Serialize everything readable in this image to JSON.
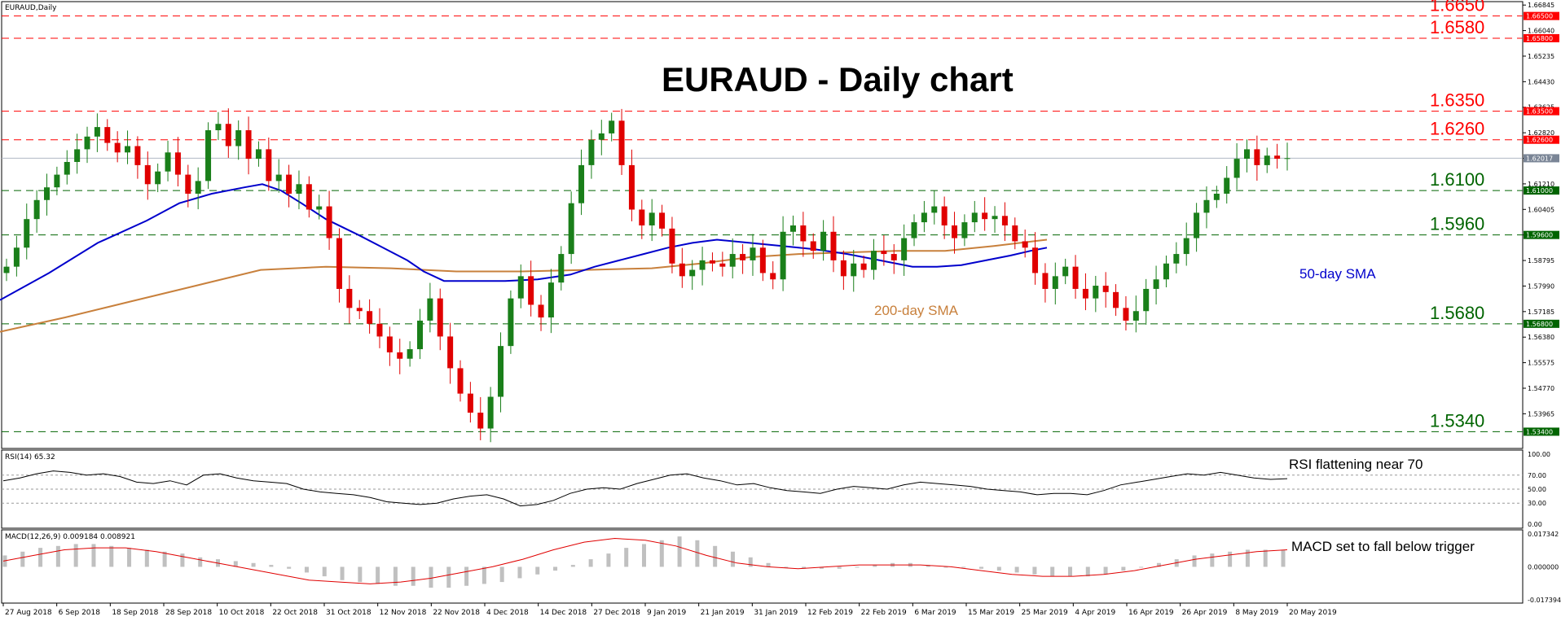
{
  "chart_data": {
    "type": "candlestick",
    "symbol_label": "EURAUD,Daily",
    "title": "EURAUD - Daily chart",
    "price_axis": {
      "range": [
        1.53,
        1.6685
      ],
      "ticks": [
        "1.66845",
        "1.66040",
        "1.65235",
        "1.64430",
        "1.63625",
        "1.62820",
        "1.62015",
        "1.61210",
        "1.60405",
        "1.59600",
        "1.58795",
        "1.57990",
        "1.57185",
        "1.56380",
        "1.55575",
        "1.54770",
        "1.53965"
      ]
    },
    "date_axis": [
      "27 Aug 2018",
      "6 Sep 2018",
      "18 Sep 2018",
      "28 Sep 2018",
      "10 Oct 2018",
      "22 Oct 2018",
      "31 Oct 2018",
      "12 Nov 2018",
      "22 Nov 2018",
      "4 Dec 2018",
      "14 Dec 2018",
      "27 Dec 2018",
      "9 Jan 2019",
      "21 Jan 2019",
      "31 Jan 2019",
      "12 Feb 2019",
      "22 Feb 2019",
      "6 Mar 2019",
      "15 Mar 2019",
      "25 Mar 2019",
      "4 Apr 2019",
      "16 Apr 2019",
      "26 Apr 2019",
      "8 May 2019",
      "20 May 2019"
    ],
    "levels": [
      {
        "value": 1.665,
        "label": "1.6650",
        "badge": "1.66500",
        "color": "#ff0000"
      },
      {
        "value": 1.658,
        "label": "1.6580",
        "badge": "1.65800",
        "color": "#ff0000"
      },
      {
        "value": 1.635,
        "label": "1.6350",
        "badge": "1.63500",
        "color": "#ff0000"
      },
      {
        "value": 1.626,
        "label": "1.6260",
        "badge": "1.62600",
        "color": "#ff0000"
      },
      {
        "value": 1.61,
        "label": "1.6100",
        "badge": "1.61000",
        "color": "#006400"
      },
      {
        "value": 1.596,
        "label": "1.5960",
        "badge": "1.59600",
        "color": "#006400"
      },
      {
        "value": 1.568,
        "label": "1.5680",
        "badge": "1.56800",
        "color": "#006400"
      },
      {
        "value": 1.534,
        "label": "1.5340",
        "badge": "1.53400",
        "color": "#006400"
      }
    ],
    "current_price": {
      "value": 1.62017,
      "badge": "1.62017"
    },
    "sma50_label": "50-day SMA",
    "sma200_label": "200-day SMA",
    "closes": [
      1.586,
      1.592,
      1.601,
      1.607,
      1.611,
      1.615,
      1.619,
      1.623,
      1.627,
      1.63,
      1.625,
      1.622,
      1.624,
      1.618,
      1.612,
      1.616,
      1.622,
      1.615,
      1.609,
      1.613,
      1.629,
      1.631,
      1.624,
      1.629,
      1.62,
      1.623,
      1.613,
      1.615,
      1.609,
      1.612,
      1.604,
      1.605,
      1.595,
      1.579,
      1.573,
      1.572,
      1.568,
      1.564,
      1.559,
      1.557,
      1.56,
      1.569,
      1.576,
      1.564,
      1.554,
      1.546,
      1.54,
      1.535,
      1.545,
      1.561,
      1.576,
      1.583,
      1.574,
      1.57,
      1.581,
      1.59,
      1.606,
      1.618,
      1.626,
      1.628,
      1.632,
      1.618,
      1.604,
      1.599,
      1.603,
      1.598,
      1.587,
      1.583,
      1.585,
      1.588,
      1.587,
      1.586,
      1.59,
      1.588,
      1.592,
      1.584,
      1.582,
      1.597,
      1.599,
      1.594,
      1.591,
      1.597,
      1.588,
      1.583,
      1.587,
      1.585,
      1.591,
      1.59,
      1.588,
      1.595,
      1.6,
      1.603,
      1.605,
      1.599,
      1.595,
      1.6,
      1.603,
      1.601,
      1.602,
      1.599,
      1.594,
      1.592,
      1.584,
      1.579,
      1.583,
      1.586,
      1.579,
      1.576,
      1.58,
      1.578,
      1.573,
      1.569,
      1.572,
      1.579,
      1.582,
      1.587,
      1.59,
      1.595,
      1.603,
      1.607,
      1.609,
      1.614,
      1.62,
      1.623,
      1.618,
      1.621,
      1.62,
      1.6202
    ],
    "sma50": [
      [
        0,
        1.5755
      ],
      [
        60,
        1.584
      ],
      [
        120,
        1.5935
      ],
      [
        180,
        1.6005
      ],
      [
        220,
        1.606
      ],
      [
        260,
        1.609
      ],
      [
        300,
        1.611
      ],
      [
        322,
        1.612
      ],
      [
        345,
        1.61
      ],
      [
        370,
        1.606
      ],
      [
        400,
        1.601
      ],
      [
        440,
        1.596
      ],
      [
        470,
        1.592
      ],
      [
        500,
        1.588
      ],
      [
        520,
        1.5845
      ],
      [
        545,
        1.5815
      ],
      [
        580,
        1.5815
      ],
      [
        620,
        1.5815
      ],
      [
        660,
        1.582
      ],
      [
        700,
        1.5835
      ],
      [
        730,
        1.586
      ],
      [
        760,
        1.588
      ],
      [
        790,
        1.59
      ],
      [
        820,
        1.592
      ],
      [
        850,
        1.5935
      ],
      [
        880,
        1.5945
      ],
      [
        920,
        1.5935
      ],
      [
        960,
        1.5925
      ],
      [
        1000,
        1.5915
      ],
      [
        1040,
        1.59
      ],
      [
        1080,
        1.588
      ],
      [
        1120,
        1.586
      ],
      [
        1150,
        1.586
      ],
      [
        1180,
        1.5865
      ],
      [
        1210,
        1.588
      ],
      [
        1240,
        1.5895
      ],
      [
        1265,
        1.591
      ],
      [
        1285,
        1.592
      ]
    ],
    "sma200": [
      [
        0,
        1.5655
      ],
      [
        80,
        1.57
      ],
      [
        160,
        1.575
      ],
      [
        240,
        1.58
      ],
      [
        320,
        1.585
      ],
      [
        400,
        1.586
      ],
      [
        480,
        1.5855
      ],
      [
        560,
        1.5845
      ],
      [
        640,
        1.5845
      ],
      [
        720,
        1.585
      ],
      [
        800,
        1.5855
      ],
      [
        860,
        1.587
      ],
      [
        920,
        1.589
      ],
      [
        980,
        1.59
      ],
      [
        1040,
        1.5905
      ],
      [
        1100,
        1.591
      ],
      [
        1160,
        1.591
      ],
      [
        1220,
        1.5925
      ],
      [
        1285,
        1.5945
      ]
    ],
    "rsi": {
      "label": "RSI(14) 65.32",
      "annotation": "RSI flattening near 70",
      "ticks": [
        "100.00",
        "70.00",
        "50.00",
        "30.00",
        "0.00"
      ],
      "values": [
        62,
        66,
        72,
        76,
        74,
        70,
        72,
        68,
        60,
        58,
        62,
        56,
        70,
        72,
        66,
        62,
        60,
        58,
        50,
        46,
        44,
        42,
        38,
        32,
        30,
        28,
        30,
        36,
        40,
        42,
        36,
        26,
        28,
        34,
        44,
        50,
        52,
        50,
        58,
        64,
        70,
        72,
        66,
        62,
        56,
        58,
        52,
        48,
        46,
        44,
        50,
        54,
        52,
        50,
        56,
        60,
        58,
        56,
        54,
        50,
        48,
        46,
        42,
        44,
        44,
        42,
        48,
        56,
        60,
        64,
        68,
        72,
        70,
        74,
        70,
        66,
        64,
        65
      ]
    },
    "macd": {
      "label": "MACD(12,26,9) 0.009184 0.008921",
      "annotation": "MACD set to fall below trigger",
      "ticks": [
        "0.017342",
        "0.000000",
        "-0.017394"
      ],
      "histogram": [
        0.006,
        0.008,
        0.01,
        0.011,
        0.012,
        0.012,
        0.011,
        0.01,
        0.009,
        0.008,
        0.007,
        0.005,
        0.004,
        0.003,
        0.002,
        0.001,
        -0.001,
        -0.003,
        -0.005,
        -0.007,
        -0.008,
        -0.009,
        -0.01,
        -0.01,
        -0.011,
        -0.011,
        -0.01,
        -0.009,
        -0.008,
        -0.006,
        -0.004,
        -0.002,
        0.001,
        0.004,
        0.007,
        0.01,
        0.012,
        0.014,
        0.016,
        0.014,
        0.011,
        0.008,
        0.005,
        0.002,
        0.0,
        -0.001,
        -0.001,
        -0.001,
        0.0,
        0.001,
        0.002,
        0.002,
        0.001,
        0.0,
        0.0,
        -0.001,
        -0.002,
        -0.003,
        -0.004,
        -0.005,
        -0.005,
        -0.005,
        -0.004,
        -0.002,
        0.0,
        0.002,
        0.004,
        0.006,
        0.007,
        0.008,
        0.009,
        0.009,
        0.009
      ],
      "signal": [
        0.003,
        0.006,
        0.009,
        0.01,
        0.01,
        0.008,
        0.005,
        0.002,
        -0.001,
        -0.004,
        -0.007,
        -0.008,
        -0.009,
        -0.008,
        -0.006,
        -0.003,
        0.0,
        0.004,
        0.009,
        0.013,
        0.015,
        0.014,
        0.011,
        0.006,
        0.002,
        0.0,
        -0.001,
        0.0,
        0.001,
        0.001,
        0.001,
        0.0,
        -0.002,
        -0.004,
        -0.005,
        -0.005,
        -0.004,
        -0.002,
        0.001,
        0.004,
        0.006,
        0.008,
        0.009
      ]
    }
  }
}
